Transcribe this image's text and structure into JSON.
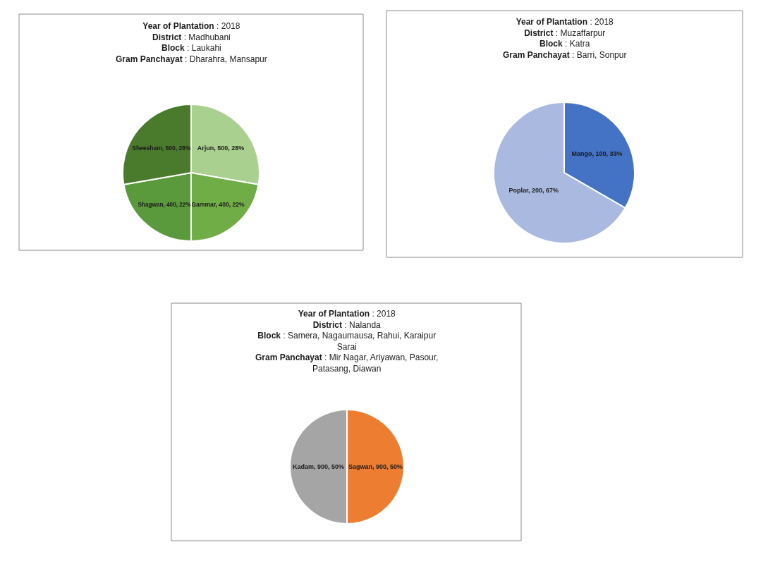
{
  "chart_data": [
    {
      "type": "pie",
      "title": "Year of Plantation : 2018\nDistrict : Madhubani\nBlock : Laukahi\nGram Panchayat : Dharahra, Mansapur",
      "categories": [
        "Arjun",
        "Gammar",
        "Shagwan",
        "Sheesham"
      ],
      "values": [
        500,
        400,
        400,
        500
      ],
      "value_labels": [
        ", 500, 28%",
        ", 400, 22%",
        ", 400, 22%",
        ", 500, 28%"
      ],
      "colors": [
        "#a9d08e",
        "#70ad47",
        "#5b9a3c",
        "#4a7a2c"
      ],
      "legend": false
    },
    {
      "type": "pie",
      "title": "Year of Plantation : 2018\nDistrict : Muzaffarpur\nBlock : Katra\nGram Panchayat : Barri, Sonpur",
      "categories": [
        "Mango",
        "Poplar"
      ],
      "values": [
        100,
        200
      ],
      "value_labels": [
        ", 100, 33%",
        ", 200, 67%"
      ],
      "colors": [
        "#4472c4",
        "#a9b9e0"
      ],
      "legend": false
    },
    {
      "type": "pie",
      "title": "Year of Plantation : 2018\nDistrict : Nalanda\nBlock : Samera, Nagaumausa, Rahui, Karaipur\nSarai\nGram Panchayat : Mir Nagar, Ariyawan, Pasour,\nPatasang, Diawan",
      "categories": [
        "Sagwan",
        "Kadam"
      ],
      "values": [
        900,
        900
      ],
      "value_labels": [
        ", 900, 50%",
        ", 900, 50%"
      ],
      "colors": [
        "#ed7d31",
        "#a5a5a5"
      ],
      "legend": false
    }
  ]
}
